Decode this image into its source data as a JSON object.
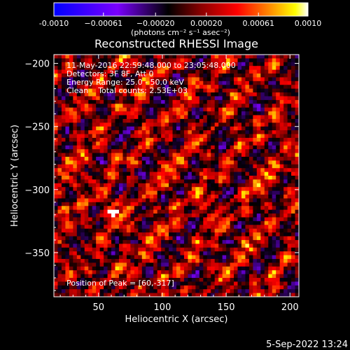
{
  "chart_data": {
    "type": "heatmap",
    "title": "Reconstructed RHESSI Image",
    "xlabel": "Heliocentric X (arcsec)",
    "ylabel": "Heliocentric Y (arcsec)",
    "xlim": [
      15,
      207
    ],
    "ylim": [
      -385,
      -193
    ],
    "x_ticks": [
      50,
      100,
      150,
      200
    ],
    "y_ticks": [
      -200,
      -250,
      -300,
      -350
    ],
    "colorbar": {
      "min": -0.001,
      "max": 0.001,
      "tick_values": [
        -0.001,
        -0.00061,
        -0.0002,
        0.0002,
        0.00061,
        0.001
      ],
      "tick_labels": [
        "-0.0010",
        "−0.00061",
        "−0.00020",
        "0.00020",
        "0.00061",
        "0.0010"
      ],
      "unit_label": "(photons cm⁻² s⁻¹ asec⁻²)",
      "colormap": [
        "#0000ff",
        "#7a00ff",
        "#000000",
        "#8b0000",
        "#ff0000",
        "#ff8c00",
        "#ffff00",
        "#ffffff"
      ]
    },
    "annotations": [
      "11-May-2016 22:59:48.000 to 23:05:48.000",
      "Detectors: 3F 8F, Att 0",
      "Energy Range: 25.0 - 50.0 keV",
      "Clean    Total counts: 2.53E+03"
    ],
    "peak_label": "Position of Peak = [60,-317]",
    "peak": {
      "x": 60,
      "y": -317
    },
    "grid": false
  },
  "footer": {
    "date": "5-Sep-2022 13:24"
  }
}
